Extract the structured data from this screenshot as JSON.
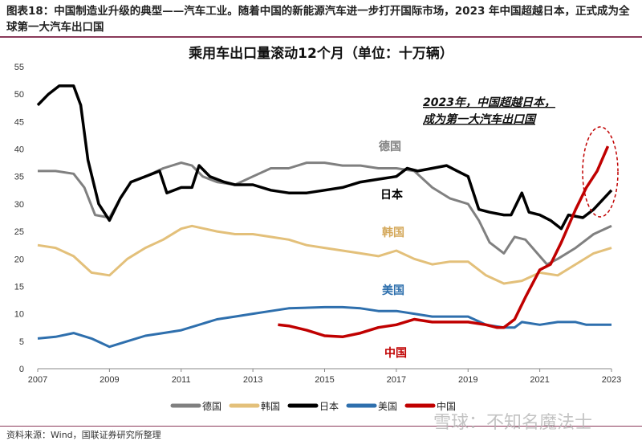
{
  "caption": "图表18：中国制造业升级的典型——汽车工业。随着中国的新能源汽车进一步打开国际市场，2023 年中国超越日本，正式成为全球第一大汽车出口国",
  "source": "资料来源：Wind，国联证券研究所整理",
  "watermark": "雪球：不知名魔法士",
  "chart_data": {
    "type": "line",
    "title": "乘用车出口量滚动12个月（单位：十万辆）",
    "xlabel": "",
    "ylabel": "",
    "xlim": [
      2007,
      2023
    ],
    "ylim": [
      0,
      55
    ],
    "xticks": [
      2007,
      2009,
      2011,
      2013,
      2015,
      2017,
      2019,
      2021,
      2023
    ],
    "yticks": [
      0,
      5,
      10,
      15,
      20,
      25,
      30,
      35,
      40,
      45,
      50,
      55
    ],
    "grid": false,
    "legend": "bottom",
    "annotation": [
      "2023年，中国超越日本，",
      "成为第一大汽车出口国"
    ],
    "series": [
      {
        "name": "德国",
        "color": "#808080",
        "x": [
          2007,
          2007.5,
          2008,
          2008.3,
          2008.6,
          2009,
          2009.3,
          2009.6,
          2010,
          2010.5,
          2011,
          2011.3,
          2011.6,
          2012,
          2012.5,
          2013,
          2013.5,
          2014,
          2014.5,
          2015,
          2015.5,
          2016,
          2016.5,
          2017,
          2017.5,
          2018,
          2018.5,
          2019,
          2019.3,
          2019.6,
          2020,
          2020.3,
          2020.6,
          2021,
          2021.2,
          2021.5,
          2022,
          2022.5,
          2023
        ],
        "y": [
          36,
          36,
          35.5,
          33,
          28,
          27.5,
          31,
          34,
          35,
          36.5,
          37.5,
          37,
          35,
          34,
          33.5,
          35,
          36.5,
          36.5,
          37.5,
          37.5,
          37,
          37,
          36.5,
          36.5,
          36,
          33,
          31,
          30,
          27,
          23,
          21,
          24,
          23.5,
          20.5,
          19,
          20,
          22,
          24.5,
          26
        ]
      },
      {
        "name": "韩国",
        "color": "#e3c07a",
        "x": [
          2007,
          2007.5,
          2008,
          2008.5,
          2009,
          2009.5,
          2010,
          2010.5,
          2011,
          2011.3,
          2012,
          2012.5,
          2013,
          2013.5,
          2014,
          2014.5,
          2015,
          2015.5,
          2016,
          2016.5,
          2017,
          2017.5,
          2018,
          2018.5,
          2019,
          2019.5,
          2020,
          2020.5,
          2021,
          2021.5,
          2022,
          2022.5,
          2023
        ],
        "y": [
          22.5,
          22,
          20.5,
          17.5,
          17,
          20,
          22,
          23.5,
          25.5,
          26,
          25,
          24.5,
          24.5,
          24,
          23.5,
          22.5,
          22,
          21.5,
          21,
          20.5,
          21.5,
          20,
          19,
          19.5,
          19.5,
          17,
          15.5,
          16,
          17.5,
          17,
          19,
          21,
          22
        ]
      },
      {
        "name": "日本",
        "color": "#000000",
        "x": [
          2007,
          2007.3,
          2007.6,
          2008,
          2008.2,
          2008.4,
          2008.7,
          2009,
          2009.3,
          2009.6,
          2010,
          2010.4,
          2010.6,
          2011,
          2011.3,
          2011.5,
          2011.8,
          2012.2,
          2012.5,
          2013,
          2013.5,
          2014,
          2014.5,
          2015,
          2015.5,
          2016,
          2016.5,
          2017,
          2017.3,
          2017.6,
          2018,
          2018.4,
          2018.7,
          2019,
          2019.3,
          2019.6,
          2020,
          2020.2,
          2020.5,
          2020.7,
          2021,
          2021.3,
          2021.6,
          2021.8,
          2022.2,
          2022.5,
          2023
        ],
        "y": [
          48,
          50,
          51.5,
          51.5,
          48,
          38,
          30,
          27,
          31,
          34,
          35,
          36,
          32,
          33,
          33,
          37,
          35,
          34,
          33.5,
          33.5,
          32.5,
          32,
          32,
          32.5,
          33,
          34,
          34.5,
          35,
          36.5,
          36,
          36.5,
          37,
          36,
          35,
          29,
          28.5,
          28,
          28,
          32,
          28.5,
          28,
          27,
          25.5,
          28,
          27.5,
          29,
          32.5
        ]
      },
      {
        "name": "美国",
        "color": "#2e6fad",
        "x": [
          2007,
          2007.5,
          2008,
          2008.5,
          2009,
          2009.5,
          2010,
          2010.5,
          2011,
          2011.5,
          2012,
          2012.5,
          2013,
          2013.5,
          2014,
          2015,
          2015.5,
          2016,
          2016.5,
          2017,
          2017.5,
          2018,
          2018.5,
          2019,
          2019.5,
          2020,
          2020.3,
          2020.5,
          2021,
          2021.5,
          2022,
          2022.3,
          2023
        ],
        "y": [
          5.5,
          5.8,
          6.5,
          5.5,
          4,
          5,
          6,
          6.5,
          7,
          8,
          9,
          9.5,
          10,
          10.5,
          11,
          11.2,
          11.2,
          11,
          10.5,
          10.5,
          10,
          9.5,
          9.5,
          9.5,
          8,
          7.5,
          7.5,
          8.5,
          8,
          8.5,
          8.5,
          8,
          8
        ]
      },
      {
        "name": "中国",
        "color": "#c00000",
        "x": [
          2013.7,
          2014,
          2014.5,
          2015,
          2015.5,
          2016,
          2016.5,
          2017,
          2017.5,
          2018,
          2018.5,
          2019,
          2019.5,
          2019.8,
          2020,
          2020.3,
          2020.6,
          2021,
          2021.3,
          2021.6,
          2022,
          2022.3,
          2022.6,
          2022.9
        ],
        "y": [
          8,
          7.8,
          7,
          6,
          5.8,
          6.5,
          7.5,
          8,
          9,
          8.5,
          8.5,
          8.5,
          8,
          7.5,
          7.5,
          9,
          13,
          18,
          19,
          23,
          29,
          33,
          36,
          40.5
        ]
      }
    ]
  }
}
